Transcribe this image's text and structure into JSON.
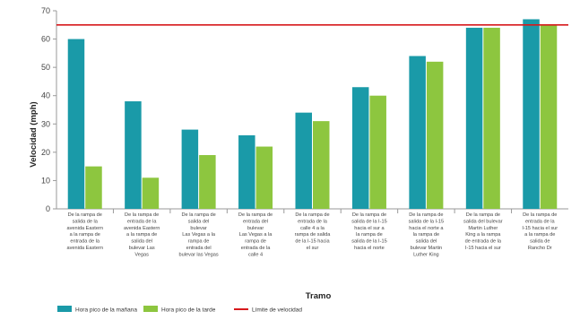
{
  "chart_data": {
    "type": "bar",
    "xlabel": "Tramo",
    "ylabel": "Velocidad (mph)",
    "ylim": [
      0,
      70
    ],
    "yticks": [
      0,
      10,
      20,
      30,
      40,
      50,
      60,
      70
    ],
    "grid": false,
    "legend_position": "bottom-left",
    "categories": [
      [
        "De la rampa de",
        "salida de la",
        "avenida Eastern",
        "a la rampa de",
        "entrada de la",
        "avenida Eastern"
      ],
      [
        "De la rampa de",
        "entrada de la",
        "avenida Eastern",
        "a la rampa de",
        "salida del",
        "bulevar Las",
        "Vegas"
      ],
      [
        "De la rampa de",
        "salida del",
        "bulevar",
        "Las Vegas a la",
        "rampa de",
        "entrada del",
        "bulevar las Vegas"
      ],
      [
        "De la rampa de",
        "entrada del",
        "bulevar",
        "Las Vegas a la",
        "rampa de",
        "entrada de la",
        "calle 4"
      ],
      [
        "De la rampa de",
        "entrada de la",
        "calle 4 a la",
        "rampa de salida",
        "de la I-15 hacia",
        "el sur"
      ],
      [
        "De la rampa de",
        "salida de la I-15",
        "hacia el sur a",
        "la rampa de",
        "salida de la I-15",
        "hacia el norte"
      ],
      [
        "De la rampa de",
        "salida de la I-15",
        "hacia el norte a",
        "la rampa de",
        "salida del",
        "bulevar Martin",
        "Luther King"
      ],
      [
        "De la rampa de",
        "salida del bulevar",
        "Martin Luther",
        "King a la rampa",
        "de entrada de la",
        "I-15 hacia el sur"
      ],
      [
        "De la rampa de",
        "entrada de la",
        "I-15 hacia el sur",
        "a la rampa de",
        "salida de",
        "Rancho Dr"
      ]
    ],
    "series": [
      {
        "name": "Hora pico de la mañana",
        "color": "#1a9aa8",
        "values": [
          60,
          38,
          28,
          26,
          34,
          43,
          54,
          64,
          67
        ]
      },
      {
        "name": "Hora pico de la tarde",
        "color": "#8dc63f",
        "values": [
          15,
          11,
          19,
          22,
          31,
          40,
          52,
          64,
          65
        ]
      }
    ],
    "reference_line": {
      "name": "Límite de velocidad",
      "value": 65,
      "color": "#d7191c"
    }
  }
}
